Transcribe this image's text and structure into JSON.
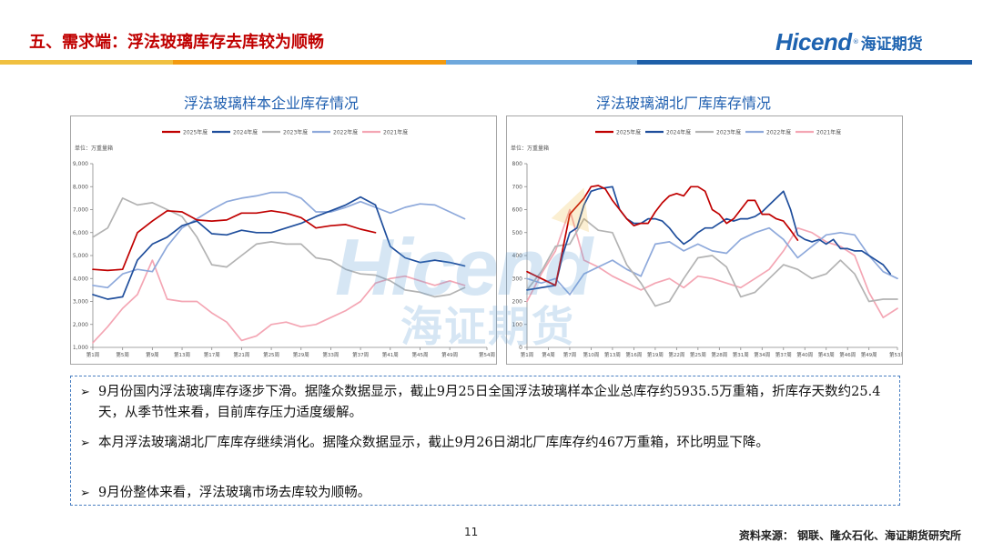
{
  "header": {
    "title": "五、需求端：浮法玻璃库存去库较为顺畅",
    "logo_en": "Hicend",
    "logo_reg": "®",
    "logo_cn": "海证期货",
    "stripe_colors": [
      "#f0c040",
      "#f39a10",
      "#6fa8dc",
      "#1e5fa8"
    ]
  },
  "watermark": {
    "en": "Hicend",
    "reg": "®",
    "cn": "海证期货"
  },
  "series_colors": [
    "#c00000",
    "#1f4e9c",
    "#b3b3b3",
    "#8ea9db",
    "#f4a6b4"
  ],
  "chart_data": [
    {
      "type": "line",
      "title": "浮法玻璃样本企业库存情况",
      "unit_label": "单位：万重量箱",
      "x_tick_labels": [
        "第1周",
        "第5周",
        "第9周",
        "第13周",
        "第17周",
        "第21周",
        "第25周",
        "第29周",
        "第33周",
        "第37周",
        "第41周",
        "第45周",
        "第49周",
        "第54周"
      ],
      "x_ticks": [
        1,
        5,
        9,
        13,
        17,
        21,
        25,
        29,
        33,
        37,
        41,
        45,
        49,
        54
      ],
      "xlim": [
        1,
        54
      ],
      "ylim": [
        1000,
        9000
      ],
      "y_ticks": [
        1000,
        2000,
        3000,
        4000,
        5000,
        6000,
        7000,
        8000,
        9000
      ],
      "y_tick_labels": [
        "1,000",
        "2,000",
        "3,000",
        "4,000",
        "5,000",
        "6,000",
        "7,000",
        "8,000",
        "9,000"
      ],
      "legend_position": "top",
      "series": [
        {
          "name": "2025年度",
          "x": [
            1,
            3,
            5,
            7,
            9,
            11,
            13,
            15,
            17,
            19,
            21,
            23,
            25,
            27,
            29,
            31,
            33,
            35,
            37,
            39
          ],
          "values": [
            4400,
            4350,
            4400,
            6000,
            6500,
            6950,
            6900,
            6550,
            6500,
            6550,
            6850,
            6850,
            6950,
            6850,
            6650,
            6200,
            6300,
            6350,
            6150,
            6000
          ]
        },
        {
          "name": "2024年度",
          "x": [
            1,
            3,
            5,
            7,
            9,
            11,
            13,
            15,
            17,
            19,
            21,
            23,
            25,
            27,
            29,
            31,
            33,
            35,
            37,
            39,
            41,
            43,
            45,
            47,
            49,
            51
          ],
          "values": [
            3300,
            3100,
            3200,
            4800,
            5500,
            5800,
            6300,
            6500,
            5950,
            5900,
            6100,
            6000,
            6000,
            6200,
            6400,
            6700,
            6950,
            7200,
            7550,
            7200,
            5400,
            4900,
            4700,
            4800,
            4700,
            4550
          ]
        },
        {
          "name": "2023年度",
          "x": [
            1,
            3,
            5,
            7,
            9,
            11,
            13,
            15,
            17,
            19,
            21,
            23,
            25,
            27,
            29,
            31,
            33,
            35,
            37,
            39,
            41,
            43,
            45,
            47,
            49,
            51
          ],
          "values": [
            5800,
            6200,
            7500,
            7200,
            7300,
            7000,
            6700,
            5800,
            4600,
            4500,
            5000,
            5500,
            5600,
            5500,
            5500,
            4900,
            4800,
            4400,
            4200,
            4150,
            3900,
            3500,
            3400,
            3200,
            3300,
            3600
          ]
        },
        {
          "name": "2022年度",
          "x": [
            1,
            3,
            5,
            7,
            9,
            11,
            13,
            15,
            17,
            19,
            21,
            23,
            25,
            27,
            29,
            31,
            33,
            35,
            37,
            39,
            41,
            43,
            45,
            47,
            49,
            51
          ],
          "values": [
            3700,
            3600,
            4200,
            4400,
            4300,
            5400,
            6200,
            6600,
            7000,
            7350,
            7500,
            7600,
            7750,
            7750,
            7500,
            6900,
            6900,
            7100,
            7350,
            7100,
            6850,
            7100,
            7250,
            7200,
            6900,
            6600
          ]
        },
        {
          "name": "2021年度",
          "x": [
            1,
            3,
            5,
            7,
            9,
            11,
            13,
            15,
            17,
            19,
            21,
            23,
            25,
            27,
            29,
            31,
            33,
            35,
            37,
            39,
            41,
            43,
            45,
            47,
            49,
            51
          ],
          "values": [
            1200,
            1900,
            2700,
            3300,
            4800,
            3100,
            3000,
            3000,
            2500,
            2100,
            1300,
            1500,
            2000,
            2100,
            1900,
            2000,
            2300,
            2600,
            3000,
            3800,
            4000,
            4100,
            3900,
            3700,
            3900,
            3700
          ]
        }
      ]
    },
    {
      "type": "line",
      "title": "浮法玻璃湖北厂库库存情况",
      "unit_label": "单位：万重量箱",
      "x_tick_labels": [
        "第1周",
        "第4周",
        "第7周",
        "第10周",
        "第13周",
        "第16周",
        "第19周",
        "第22周",
        "第25周",
        "第28周",
        "第31周",
        "第34周",
        "第37周",
        "第40周",
        "第43周",
        "第46周",
        "第49周",
        "第53周"
      ],
      "x_ticks": [
        1,
        4,
        7,
        10,
        13,
        16,
        19,
        22,
        25,
        28,
        31,
        34,
        37,
        40,
        43,
        46,
        49,
        53
      ],
      "xlim": [
        1,
        53
      ],
      "ylim": [
        0,
        800
      ],
      "y_ticks": [
        0,
        100,
        200,
        300,
        400,
        500,
        600,
        700,
        800
      ],
      "y_tick_labels": [
        "0",
        "100",
        "200",
        "300",
        "400",
        "500",
        "600",
        "700",
        "800"
      ],
      "legend_position": "top",
      "series": [
        {
          "name": "2025年度",
          "x": [
            1,
            3,
            5,
            7,
            9,
            10,
            11,
            12,
            13,
            14,
            15,
            16,
            17,
            18,
            19,
            20,
            21,
            22,
            23,
            24,
            25,
            26,
            27,
            28,
            29,
            30,
            31,
            32,
            33,
            34,
            35,
            36,
            37,
            38,
            39
          ],
          "values": [
            330,
            300,
            270,
            580,
            650,
            700,
            705,
            690,
            640,
            600,
            560,
            530,
            540,
            540,
            590,
            630,
            660,
            670,
            660,
            700,
            700,
            680,
            600,
            580,
            540,
            560,
            600,
            640,
            640,
            580,
            580,
            560,
            550,
            510,
            467
          ]
        },
        {
          "name": "2024年度",
          "x": [
            1,
            3,
            5,
            6,
            7,
            8,
            9,
            10,
            11,
            12,
            13,
            14,
            15,
            16,
            17,
            18,
            19,
            20,
            21,
            22,
            23,
            24,
            25,
            26,
            27,
            28,
            29,
            30,
            31,
            32,
            33,
            34,
            35,
            36,
            37,
            38,
            39,
            40,
            41,
            42,
            43,
            44,
            45,
            46,
            47,
            48,
            49,
            50,
            51,
            52
          ],
          "values": [
            250,
            260,
            270,
            400,
            500,
            520,
            620,
            680,
            690,
            695,
            700,
            600,
            560,
            540,
            540,
            560,
            560,
            550,
            520,
            480,
            450,
            470,
            500,
            520,
            520,
            540,
            560,
            550,
            560,
            560,
            570,
            590,
            620,
            650,
            680,
            600,
            490,
            470,
            460,
            470,
            450,
            470,
            430,
            430,
            420,
            420,
            400,
            380,
            360,
            320
          ]
        },
        {
          "name": "2023年度",
          "x": [
            1,
            3,
            5,
            7,
            9,
            11,
            13,
            15,
            17,
            19,
            21,
            23,
            25,
            27,
            29,
            31,
            33,
            35,
            37,
            39,
            41,
            43,
            45,
            47,
            49,
            51,
            53
          ],
          "values": [
            250,
            330,
            440,
            450,
            560,
            510,
            500,
            360,
            280,
            180,
            200,
            300,
            390,
            400,
            350,
            220,
            240,
            300,
            360,
            340,
            300,
            320,
            380,
            320,
            200,
            210,
            210
          ]
        },
        {
          "name": "2022年度",
          "x": [
            1,
            3,
            5,
            7,
            9,
            11,
            13,
            15,
            17,
            19,
            21,
            23,
            25,
            27,
            29,
            31,
            33,
            35,
            37,
            39,
            41,
            43,
            45,
            47,
            49,
            51,
            53
          ],
          "values": [
            300,
            280,
            300,
            230,
            320,
            350,
            380,
            340,
            310,
            450,
            460,
            420,
            450,
            420,
            410,
            470,
            500,
            520,
            470,
            390,
            440,
            490,
            500,
            490,
            400,
            330,
            300
          ]
        },
        {
          "name": "2021年度",
          "x": [
            1,
            3,
            5,
            7,
            9,
            11,
            13,
            15,
            17,
            19,
            21,
            23,
            25,
            27,
            29,
            31,
            33,
            35,
            37,
            39,
            41,
            43,
            45,
            47,
            49,
            51,
            53
          ],
          "values": [
            200,
            320,
            420,
            600,
            380,
            350,
            310,
            280,
            250,
            280,
            300,
            260,
            310,
            300,
            280,
            260,
            300,
            340,
            420,
            520,
            500,
            460,
            440,
            400,
            240,
            130,
            170
          ]
        }
      ]
    }
  ],
  "bullets": [
    "9月份国内浮法玻璃库存逐步下滑。据隆众数据显示，截止9月25日全国浮法玻璃样本企业总库存约5935.5万重箱，折库存天数约25.4天，从季节性来看，目前库存压力适度缓解。",
    "本月浮法玻璃湖北厂库库存继续消化。据隆众数据显示，截止9月26日湖北厂库库存约467万重箱，环比明显下降。",
    "9月份整体来看，浮法玻璃市场去库较为顺畅。"
  ],
  "bullet_marker": "➢",
  "footer": {
    "page_number": "11",
    "source": "资料来源：  钢联、隆众石化、海证期货研究所"
  }
}
